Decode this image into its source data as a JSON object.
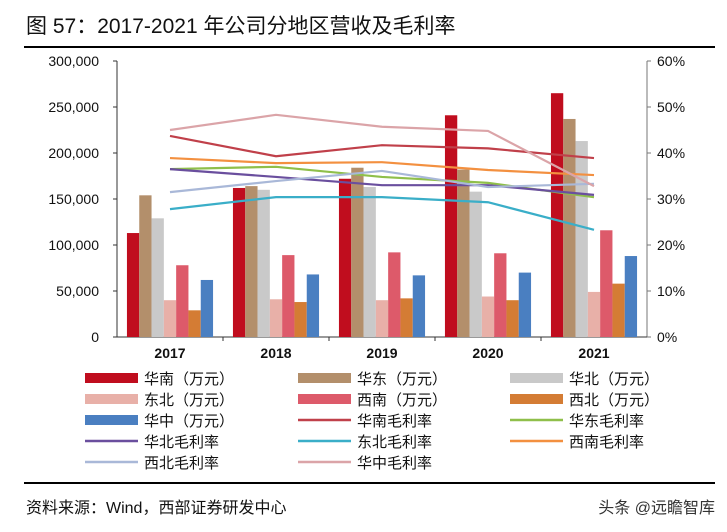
{
  "title": "图 57：2017-2021 年公司分地区营收及毛利率",
  "source": "资料来源：Wind，西部证券研发中心",
  "watermark": "头条 @远瞻智库",
  "chart_data": {
    "type": "bar+line",
    "categories": [
      "2017",
      "2018",
      "2019",
      "2020",
      "2021"
    ],
    "left_axis": {
      "ylim": [
        0,
        300000
      ],
      "ticks": [
        "0",
        "50,000",
        "100,000",
        "150,000",
        "200,000",
        "250,000",
        "300,000"
      ]
    },
    "right_axis": {
      "ylim": [
        0,
        60
      ],
      "ticks": [
        "0%",
        "10%",
        "20%",
        "30%",
        "40%",
        "50%",
        "60%"
      ]
    },
    "bar_series": [
      {
        "name": "华南（万元）",
        "color": "#c00d1e",
        "values": [
          113000,
          162000,
          172000,
          241000,
          265000
        ]
      },
      {
        "name": "华东（万元）",
        "color": "#b38f6b",
        "values": [
          154000,
          164000,
          184000,
          182000,
          237000
        ]
      },
      {
        "name": "华北（万元）",
        "color": "#c9c9c9",
        "values": [
          129000,
          160000,
          163000,
          158000,
          213000
        ]
      },
      {
        "name": "东北（万元）",
        "color": "#e8b0a8",
        "values": [
          40000,
          41000,
          40000,
          44000,
          49000
        ]
      },
      {
        "name": "西南（万元）",
        "color": "#dd5a6a",
        "values": [
          78000,
          89000,
          92000,
          91000,
          116000
        ]
      },
      {
        "name": "西北（万元）",
        "color": "#d47c34",
        "values": [
          29000,
          38000,
          42000,
          40000,
          58000
        ]
      },
      {
        "name": "华中（万元）",
        "color": "#4a7fc1",
        "values": [
          62000,
          68000,
          67000,
          70000,
          88000
        ]
      }
    ],
    "line_series": [
      {
        "name": "华南毛利率",
        "color": "#c0404a",
        "values": [
          43.7,
          39.3,
          41.7,
          41.0,
          38.9
        ]
      },
      {
        "name": "华东毛利率",
        "color": "#8fbf4a",
        "values": [
          36.5,
          37.0,
          34.8,
          33.5,
          30.4
        ]
      },
      {
        "name": "华北毛利率",
        "color": "#6a4f9e",
        "values": [
          36.5,
          34.8,
          33.0,
          33.0,
          30.9
        ]
      },
      {
        "name": "东北毛利率",
        "color": "#3aaec8",
        "values": [
          27.8,
          30.4,
          30.4,
          29.3,
          23.3
        ]
      },
      {
        "name": "西南毛利率",
        "color": "#f39040",
        "values": [
          38.9,
          37.8,
          38.0,
          36.3,
          35.2
        ]
      },
      {
        "name": "西北毛利率",
        "color": "#a9b8d8",
        "values": [
          31.5,
          33.9,
          36.1,
          32.6,
          33.3
        ]
      },
      {
        "name": "华中毛利率",
        "color": "#dba4a8",
        "values": [
          45.0,
          48.3,
          45.7,
          44.8,
          32.8
        ]
      }
    ],
    "legend_position": "bottom",
    "grid": false
  }
}
